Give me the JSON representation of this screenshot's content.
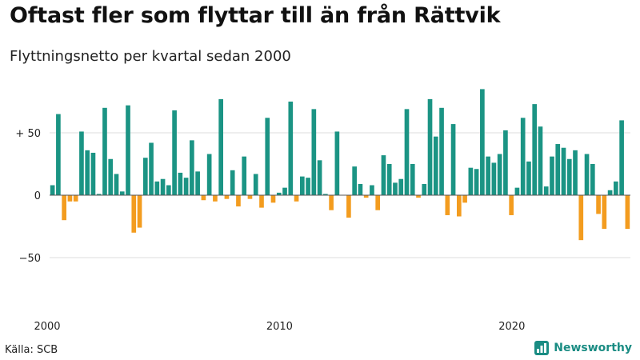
{
  "title": "Oftast fler som flyttar till än från Rättvik",
  "subtitle": "Flyttningsnetto per kvartal sedan 2000",
  "source": "Källa: SCB",
  "brand": {
    "name": "Newsworthy",
    "icon": "bar-chart-icon",
    "color": "#1a8c83"
  },
  "chart_data": {
    "type": "bar",
    "title": "Oftast fler som flyttar till än från Rättvik",
    "subtitle": "Flyttningsnetto per kvartal sedan 2000",
    "ylim": [
      -75,
      90
    ],
    "yticks": [
      {
        "value": 50,
        "label": "+ 50"
      },
      {
        "value": 0,
        "label": "0"
      },
      {
        "value": -50,
        "label": "−50"
      }
    ],
    "xticks": [
      "2000",
      "2010",
      "2020"
    ],
    "grid": true,
    "colors": {
      "positive": "#1b9484",
      "negative": "#f39c1f"
    },
    "categories": [
      "2000 K1",
      "2000 K2",
      "2000 K3",
      "2000 K4",
      "2001 K1",
      "2001 K2",
      "2001 K3",
      "2001 K4",
      "2002 K1",
      "2002 K2",
      "2002 K3",
      "2002 K4",
      "2003 K1",
      "2003 K2",
      "2003 K3",
      "2003 K4",
      "2004 K1",
      "2004 K2",
      "2004 K3",
      "2004 K4",
      "2005 K1",
      "2005 K2",
      "2005 K3",
      "2005 K4",
      "2006 K1",
      "2006 K2",
      "2006 K3",
      "2006 K4",
      "2007 K1",
      "2007 K2",
      "2007 K3",
      "2007 K4",
      "2008 K1",
      "2008 K2",
      "2008 K3",
      "2008 K4",
      "2009 K1",
      "2009 K2",
      "2009 K3",
      "2009 K4",
      "2010 K1",
      "2010 K2",
      "2010 K3",
      "2010 K4",
      "2011 K1",
      "2011 K2",
      "2011 K3",
      "2011 K4",
      "2012 K1",
      "2012 K2",
      "2012 K3",
      "2012 K4",
      "2013 K1",
      "2013 K2",
      "2013 K3",
      "2013 K4",
      "2014 K1",
      "2014 K2",
      "2014 K3",
      "2014 K4",
      "2015 K1",
      "2015 K2",
      "2015 K3",
      "2015 K4",
      "2016 K1",
      "2016 K2",
      "2016 K3",
      "2016 K4",
      "2017 K1",
      "2017 K2",
      "2017 K3",
      "2017 K4",
      "2018 K1",
      "2018 K2",
      "2018 K3",
      "2018 K4",
      "2019 K1",
      "2019 K2",
      "2019 K3",
      "2019 K4",
      "2020 K1",
      "2020 K2",
      "2020 K3",
      "2020 K4",
      "2021 K1",
      "2021 K2",
      "2021 K3",
      "2021 K4",
      "2022 K1",
      "2022 K2",
      "2022 K3",
      "2022 K4",
      "2023 K1",
      "2023 K2",
      "2023 K3",
      "2023 K4",
      "2024 K1",
      "2024 K2",
      "2024 K3",
      "2024 K4"
    ],
    "values": [
      8,
      65,
      -20,
      -5,
      -5,
      51,
      36,
      34,
      1,
      70,
      29,
      17,
      3,
      72,
      -30,
      -26,
      30,
      42,
      11,
      13,
      8,
      68,
      18,
      14,
      44,
      19,
      -4,
      33,
      -5,
      77,
      -3,
      20,
      -9,
      31,
      -3,
      17,
      -10,
      62,
      -6,
      2,
      6,
      75,
      -5,
      15,
      14,
      69,
      28,
      1,
      -12,
      51,
      0,
      -18,
      23,
      9,
      -2,
      8,
      -12,
      32,
      25,
      10,
      13,
      69,
      25,
      -2,
      9,
      77,
      47,
      70,
      -16,
      57,
      -17,
      -6,
      22,
      21,
      85,
      31,
      26,
      33,
      52,
      -16,
      6,
      62,
      27,
      73,
      55,
      7,
      31,
      41,
      38,
      29,
      36,
      -36,
      33,
      25,
      -15,
      -27,
      4,
      11,
      60,
      -27
    ]
  }
}
